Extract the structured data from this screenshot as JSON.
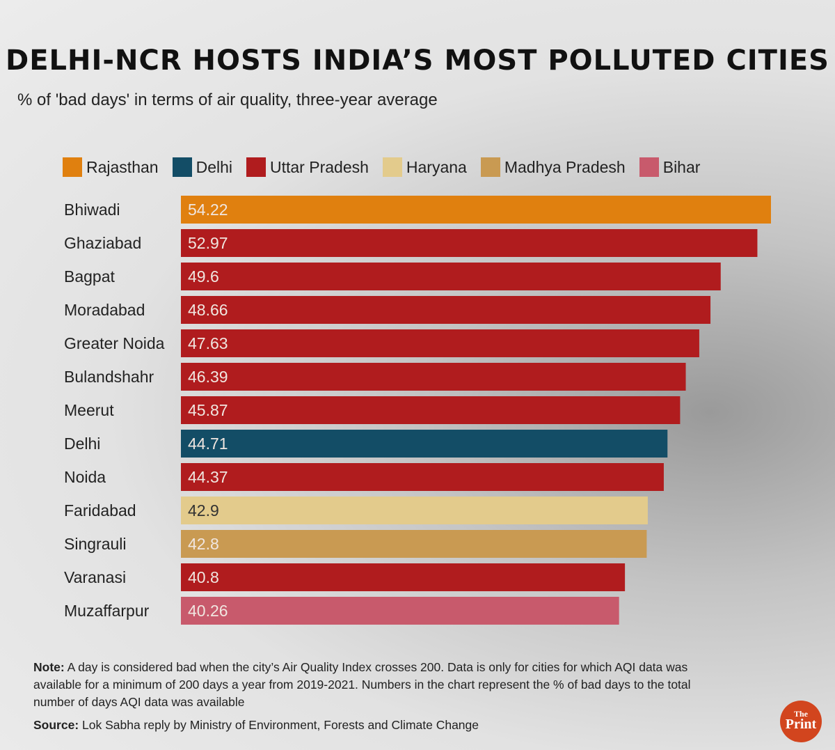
{
  "chart_data": {
    "type": "bar",
    "orientation": "horizontal",
    "title": "DELHI-NCR HOSTS INDIA’S MOST POLLUTED CITIES",
    "subtitle": "% of 'bad days' in terms of air quality, three-year average",
    "xlim": [
      0,
      54.22
    ],
    "grid": false,
    "legend_placement": "top",
    "legend": [
      {
        "name": "Rajasthan",
        "color": "#e0800f"
      },
      {
        "name": "Delhi",
        "color": "#134d66"
      },
      {
        "name": "Uttar Pradesh",
        "color": "#b01c1e"
      },
      {
        "name": "Haryana",
        "color": "#e3cb8c"
      },
      {
        "name": "Madhya Pradesh",
        "color": "#c99a52"
      },
      {
        "name": "Bihar",
        "color": "#c85a6c"
      }
    ],
    "categories": [
      "Bhiwadi",
      "Ghaziabad",
      "Bagpat",
      "Moradabad",
      "Greater Noida",
      "Bulandshahr",
      "Meerut",
      "Delhi",
      "Noida",
      "Faridabad",
      "Singrauli",
      "Varanasi",
      "Muzaffarpur"
    ],
    "values": [
      54.22,
      52.97,
      49.6,
      48.66,
      47.63,
      46.39,
      45.87,
      44.71,
      44.37,
      42.9,
      42.8,
      40.8,
      40.26
    ],
    "labels": [
      "54.22",
      "52.97",
      "49.6",
      "48.66",
      "47.63",
      "46.39",
      "45.87",
      "44.71",
      "44.37",
      "42.9",
      "42.8",
      "40.8",
      "40.26"
    ],
    "groups": [
      "Rajasthan",
      "Uttar Pradesh",
      "Uttar Pradesh",
      "Uttar Pradesh",
      "Uttar Pradesh",
      "Uttar Pradesh",
      "Uttar Pradesh",
      "Delhi",
      "Uttar Pradesh",
      "Haryana",
      "Madhya Pradesh",
      "Uttar Pradesh",
      "Bihar"
    ]
  },
  "footer": {
    "note_label": "Note:",
    "note_text": " A day is considered bad when the city’s Air Quality Index crosses 200. Data is only for cities for which AQI data was available for a minimum of 200 days a year from 2019-2021. Numbers in the chart represent the % of bad days to the total number of days AQI data was available",
    "source_label": "Source:",
    "source_text": " Lok Sabha reply by Ministry of Environment, Forests and Climate Change"
  },
  "logo": {
    "line1": "The",
    "line2": "Print"
  }
}
